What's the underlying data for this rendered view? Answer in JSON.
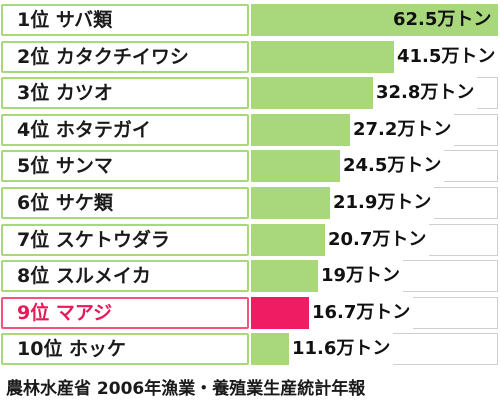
{
  "chart_data": {
    "type": "bar",
    "orientation": "horizontal",
    "unit": "万トン",
    "categories": [
      "1位 サバ類",
      "2位 カタクチイワシ",
      "3位 カツオ",
      "4位 ホタテガイ",
      "5位 サンマ",
      "6位 サケ類",
      "7位 スケトウダラ",
      "8位 スルメイカ",
      "9位 マアジ",
      "10位 ホッケ"
    ],
    "values": [
      62.5,
      41.5,
      32.8,
      27.2,
      24.5,
      21.9,
      20.7,
      19,
      16.7,
      11.6
    ],
    "value_labels": [
      "62.5万トン",
      "41.5万トン",
      "32.8万トン",
      "27.2万トン",
      "24.5万トン",
      "21.9万トン",
      "20.7万トン",
      "19万トン",
      "16.7万トン",
      "11.6万トン"
    ],
    "highlight_index": 8,
    "xlim": [
      0,
      62.5
    ],
    "grid": false,
    "colors": {
      "bar": "#a8d77c",
      "highlight_bar": "#f01c63",
      "highlight_text": "#e8185a",
      "label_border": "#a8d77c",
      "highlight_border": "#f2547f"
    }
  },
  "source": "農林水産省 2006年漁業・養殖業生産統計年報"
}
